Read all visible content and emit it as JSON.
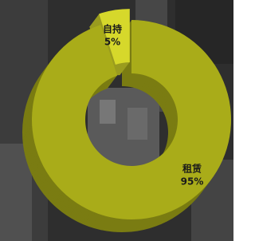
{
  "chart_data": {
    "type": "pie",
    "categories": [
      "自持",
      "租赁"
    ],
    "values": [
      5,
      95
    ],
    "value_labels": [
      "5%",
      "95%"
    ],
    "colors": [
      "#d6d82b",
      "#a9ac19"
    ]
  }
}
